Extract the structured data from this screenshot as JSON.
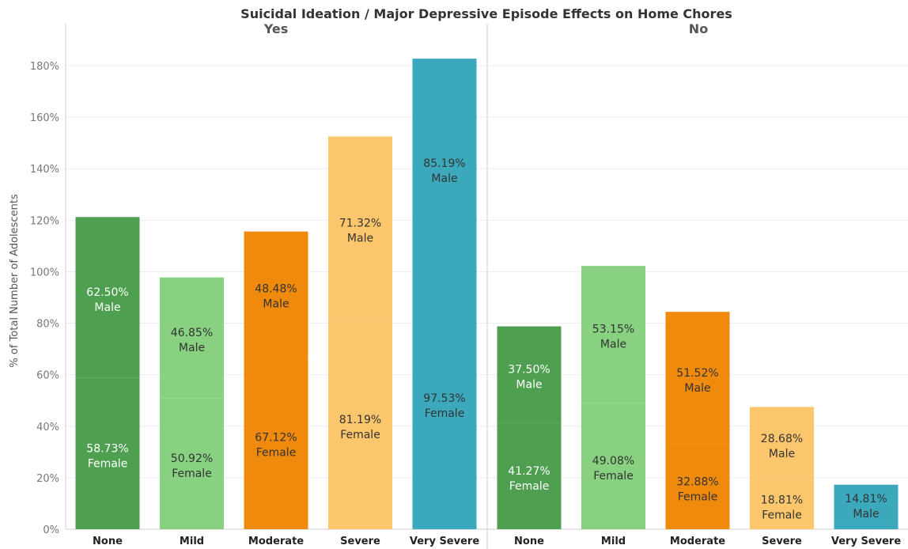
{
  "chart_data": {
    "type": "bar",
    "title": "Suicidal Ideation  /  Major Depressive Episode Effects on  Home Chores",
    "ylabel": "% of Total Number of Adolescents",
    "ylim": [
      0,
      190
    ],
    "yticks": [
      0,
      20,
      40,
      60,
      80,
      100,
      120,
      140,
      160,
      180
    ],
    "ytick_labels": [
      "0%",
      "20%",
      "40%",
      "60%",
      "80%",
      "100%",
      "120%",
      "140%",
      "160%",
      "180%"
    ],
    "categories": [
      "None",
      "Mild",
      "Moderate",
      "Severe",
      "Very Severe"
    ],
    "colors": {
      "None": "#4e9f50",
      "Mild": "#87d180",
      "Moderate": "#ef8a0c",
      "Severe": "#fcc66d",
      "Very Severe": "#3ca8bc"
    },
    "label_colors": {
      "None": "#ffffff",
      "Mild": "#333333",
      "Moderate": "#333333",
      "Severe": "#333333",
      "Very Severe": "#333333"
    },
    "panels": [
      {
        "name": "Yes",
        "stacks": [
          {
            "category": "None",
            "female": 58.73,
            "male": 62.5,
            "female_label": "58.73%",
            "male_label": "62.50%"
          },
          {
            "category": "Mild",
            "female": 50.92,
            "male": 46.85,
            "female_label": "50.92%",
            "male_label": "46.85%"
          },
          {
            "category": "Moderate",
            "female": 67.12,
            "male": 48.48,
            "female_label": "67.12%",
            "male_label": "48.48%"
          },
          {
            "category": "Severe",
            "female": 81.19,
            "male": 71.32,
            "female_label": "81.19%",
            "male_label": "71.32%"
          },
          {
            "category": "Very Severe",
            "female": 97.53,
            "male": 85.19,
            "female_label": "97.53%",
            "male_label": "85.19%"
          }
        ]
      },
      {
        "name": "No",
        "stacks": [
          {
            "category": "None",
            "female": 41.27,
            "male": 37.5,
            "female_label": "41.27%",
            "male_label": "37.50%"
          },
          {
            "category": "Mild",
            "female": 49.08,
            "male": 53.15,
            "female_label": "49.08%",
            "male_label": "53.15%"
          },
          {
            "category": "Moderate",
            "female": 32.88,
            "male": 51.52,
            "female_label": "32.88%",
            "male_label": "51.52%"
          },
          {
            "category": "Severe",
            "female": 18.81,
            "male": 28.68,
            "female_label": "18.81%",
            "male_label": "28.68%"
          },
          {
            "category": "Very Severe",
            "female": 2.47,
            "male": 14.81,
            "female_label": "",
            "male_label": "14.81%"
          }
        ]
      }
    ],
    "segment_names": {
      "female": "Female",
      "male": "Male"
    },
    "grid": true,
    "legend": "none"
  }
}
